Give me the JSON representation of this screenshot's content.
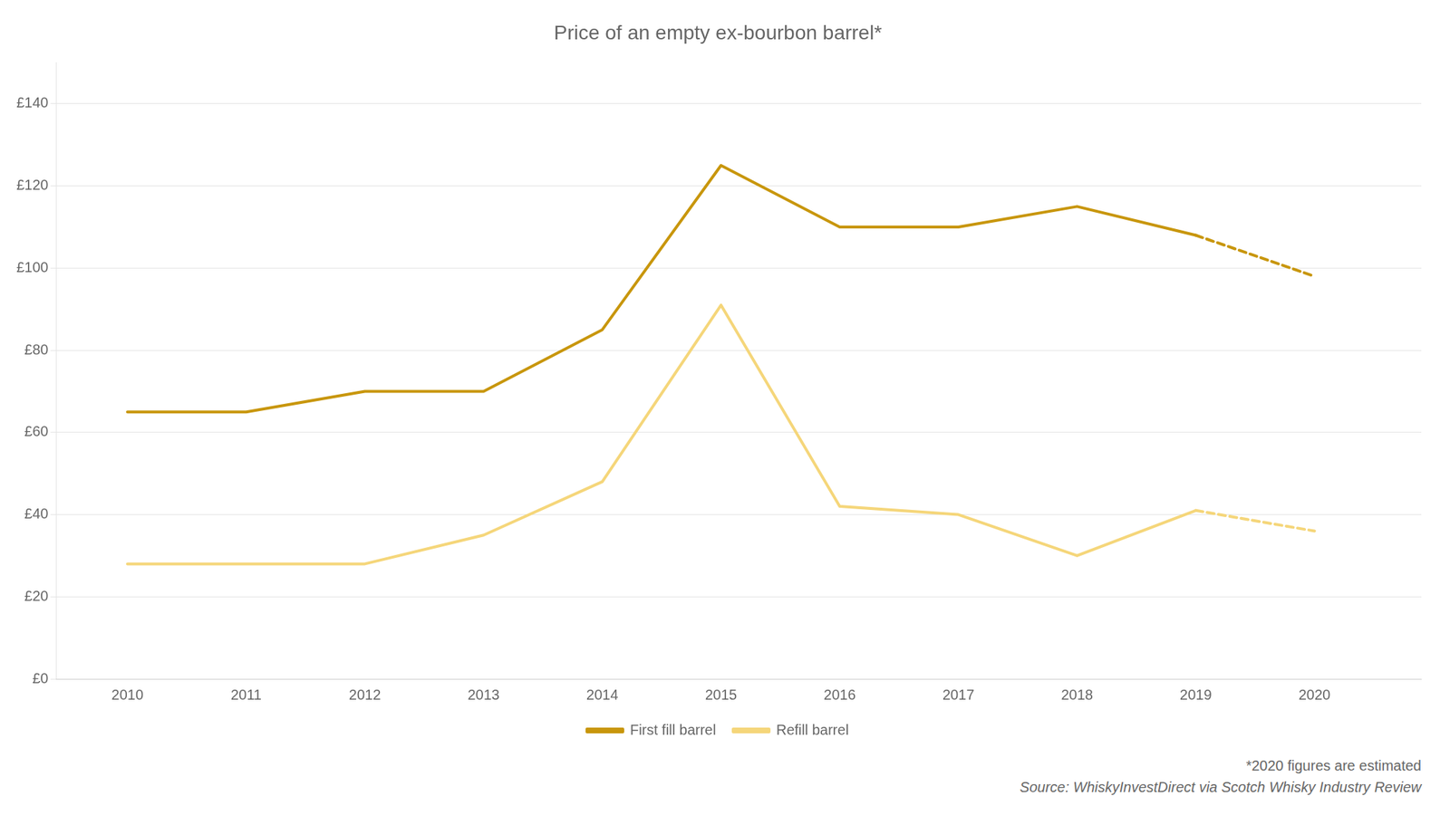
{
  "chart_data": {
    "type": "line",
    "title": "Price of an empty ex-bourbon barrel*",
    "series": [
      {
        "name": "First fill barrel",
        "color": "#C8960C",
        "line_style": "solid",
        "x": [
          2010,
          2011,
          2012,
          2013,
          2014,
          2015,
          2016,
          2017,
          2018,
          2019
        ],
        "values": [
          65,
          65,
          70,
          70,
          85,
          125,
          110,
          110,
          115,
          108
        ]
      },
      {
        "name": "Refill barrel",
        "color": "#F5D67A",
        "line_style": "solid",
        "x": [
          2010,
          2011,
          2012,
          2013,
          2014,
          2015,
          2016,
          2017,
          2018,
          2019
        ],
        "values": [
          28,
          28,
          28,
          35,
          48,
          91,
          42,
          40,
          30,
          41
        ]
      },
      {
        "color": "#C8960C",
        "line_style": "dashed",
        "x": [
          2019,
          2020
        ],
        "values": [
          108,
          98
        ]
      },
      {
        "color": "#F5D67A",
        "line_style": "dashed",
        "x": [
          2019,
          2020
        ],
        "values": [
          41,
          36
        ]
      }
    ],
    "xlim": [
      2009.4,
      2020.9
    ],
    "xticks": [
      2010,
      2011,
      2012,
      2013,
      2014,
      2015,
      2016,
      2017,
      2018,
      2019,
      2020
    ],
    "ylim": [
      0,
      150
    ],
    "yticks": [
      {
        "value": 0,
        "label": "£0"
      },
      {
        "value": 20,
        "label": "£20"
      },
      {
        "value": 40,
        "label": "£40"
      },
      {
        "value": 60,
        "label": "£60"
      },
      {
        "value": 80,
        "label": "£80"
      },
      {
        "value": 100,
        "label": "£100"
      },
      {
        "value": 120,
        "label": "£120"
      },
      {
        "value": 140,
        "label": "£140"
      }
    ],
    "grid": true,
    "legend": "bottom",
    "annotations": [
      "*2020 figures are estimated",
      "Source: WhiskyInvestDirect via Scotch Whisky Industry Review"
    ]
  }
}
